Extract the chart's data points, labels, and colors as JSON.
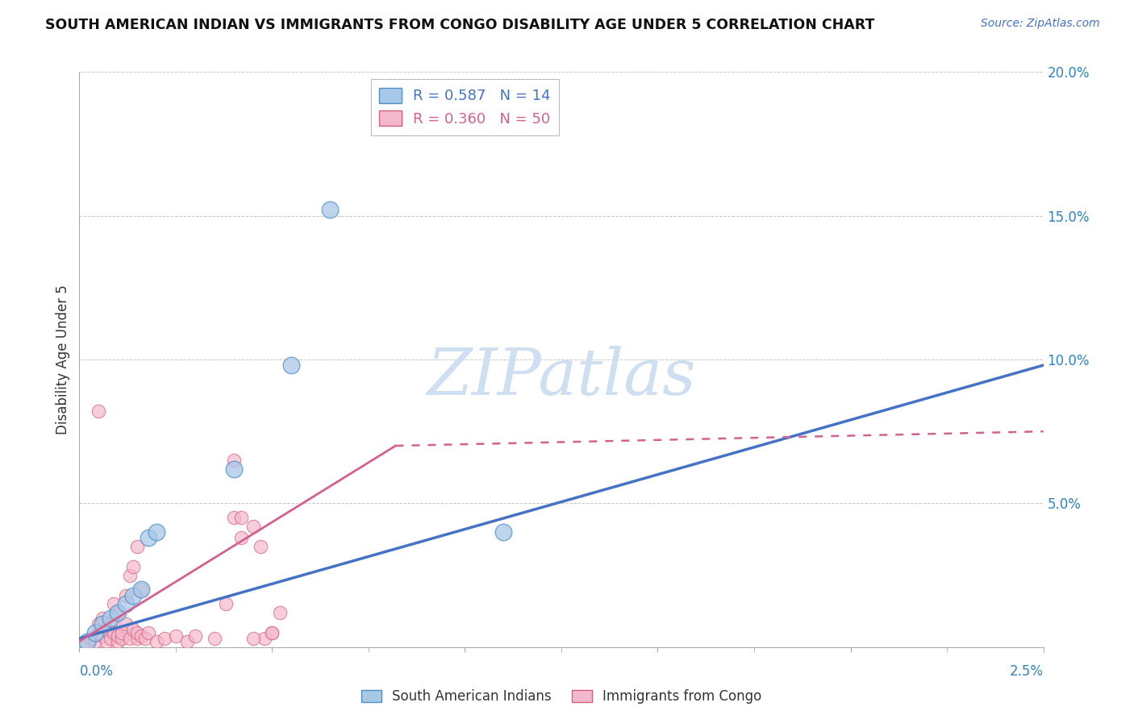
{
  "title": "SOUTH AMERICAN INDIAN VS IMMIGRANTS FROM CONGO DISABILITY AGE UNDER 5 CORRELATION CHART",
  "source": "Source: ZipAtlas.com",
  "ylabel": "Disability Age Under 5",
  "xlim": [
    0.0,
    2.5
  ],
  "ylim": [
    0.0,
    20.0
  ],
  "legend_blue_r": "0.587",
  "legend_blue_n": "14",
  "legend_pink_r": "0.360",
  "legend_pink_n": "50",
  "blue_fill": "#a8c8e8",
  "blue_edge": "#4f90c4",
  "pink_fill": "#f4b8cc",
  "pink_edge": "#d4607a",
  "blue_line": "#4472c4",
  "pink_line": "#d46090",
  "blue_scatter": [
    [
      0.02,
      0.2
    ],
    [
      0.04,
      0.5
    ],
    [
      0.06,
      0.8
    ],
    [
      0.08,
      1.0
    ],
    [
      0.1,
      1.2
    ],
    [
      0.12,
      1.5
    ],
    [
      0.14,
      1.8
    ],
    [
      0.16,
      2.0
    ],
    [
      0.18,
      3.8
    ],
    [
      0.2,
      4.0
    ],
    [
      0.4,
      6.2
    ],
    [
      0.55,
      9.8
    ],
    [
      0.65,
      15.2
    ],
    [
      1.1,
      4.0
    ]
  ],
  "pink_scatter": [
    [
      0.02,
      0.1
    ],
    [
      0.03,
      0.3
    ],
    [
      0.04,
      0.2
    ],
    [
      0.05,
      0.5
    ],
    [
      0.05,
      0.8
    ],
    [
      0.06,
      0.4
    ],
    [
      0.06,
      1.0
    ],
    [
      0.07,
      0.2
    ],
    [
      0.07,
      0.6
    ],
    [
      0.08,
      0.3
    ],
    [
      0.08,
      0.8
    ],
    [
      0.09,
      0.5
    ],
    [
      0.09,
      1.5
    ],
    [
      0.1,
      0.2
    ],
    [
      0.1,
      1.2
    ],
    [
      0.1,
      0.4
    ],
    [
      0.11,
      0.3
    ],
    [
      0.11,
      0.5
    ],
    [
      0.12,
      0.8
    ],
    [
      0.12,
      1.8
    ],
    [
      0.13,
      0.3
    ],
    [
      0.13,
      2.5
    ],
    [
      0.14,
      0.6
    ],
    [
      0.14,
      2.8
    ],
    [
      0.15,
      0.3
    ],
    [
      0.15,
      3.5
    ],
    [
      0.15,
      0.5
    ],
    [
      0.16,
      2.0
    ],
    [
      0.16,
      0.4
    ],
    [
      0.17,
      0.3
    ],
    [
      0.18,
      0.5
    ],
    [
      0.2,
      0.2
    ],
    [
      0.22,
      0.3
    ],
    [
      0.25,
      0.4
    ],
    [
      0.28,
      0.2
    ],
    [
      0.3,
      0.4
    ],
    [
      0.35,
      0.3
    ],
    [
      0.38,
      1.5
    ],
    [
      0.4,
      4.5
    ],
    [
      0.42,
      3.8
    ],
    [
      0.45,
      4.2
    ],
    [
      0.47,
      3.5
    ],
    [
      0.48,
      0.3
    ],
    [
      0.5,
      0.5
    ],
    [
      0.05,
      8.2
    ],
    [
      0.4,
      6.5
    ],
    [
      0.42,
      4.5
    ],
    [
      0.45,
      0.3
    ],
    [
      0.5,
      0.5
    ],
    [
      0.52,
      1.2
    ]
  ],
  "background_color": "#ffffff",
  "grid_color": "#c8c8c8",
  "watermark_text": "ZIPatlas",
  "watermark_color": "#cddff0",
  "blue_trendline": [
    0.0,
    0.3,
    2.5,
    9.8
  ],
  "pink_trendline_solid": [
    0.0,
    0.2,
    0.82,
    7.0
  ],
  "pink_trendline_dash": [
    0.82,
    7.0,
    2.5,
    7.5
  ]
}
